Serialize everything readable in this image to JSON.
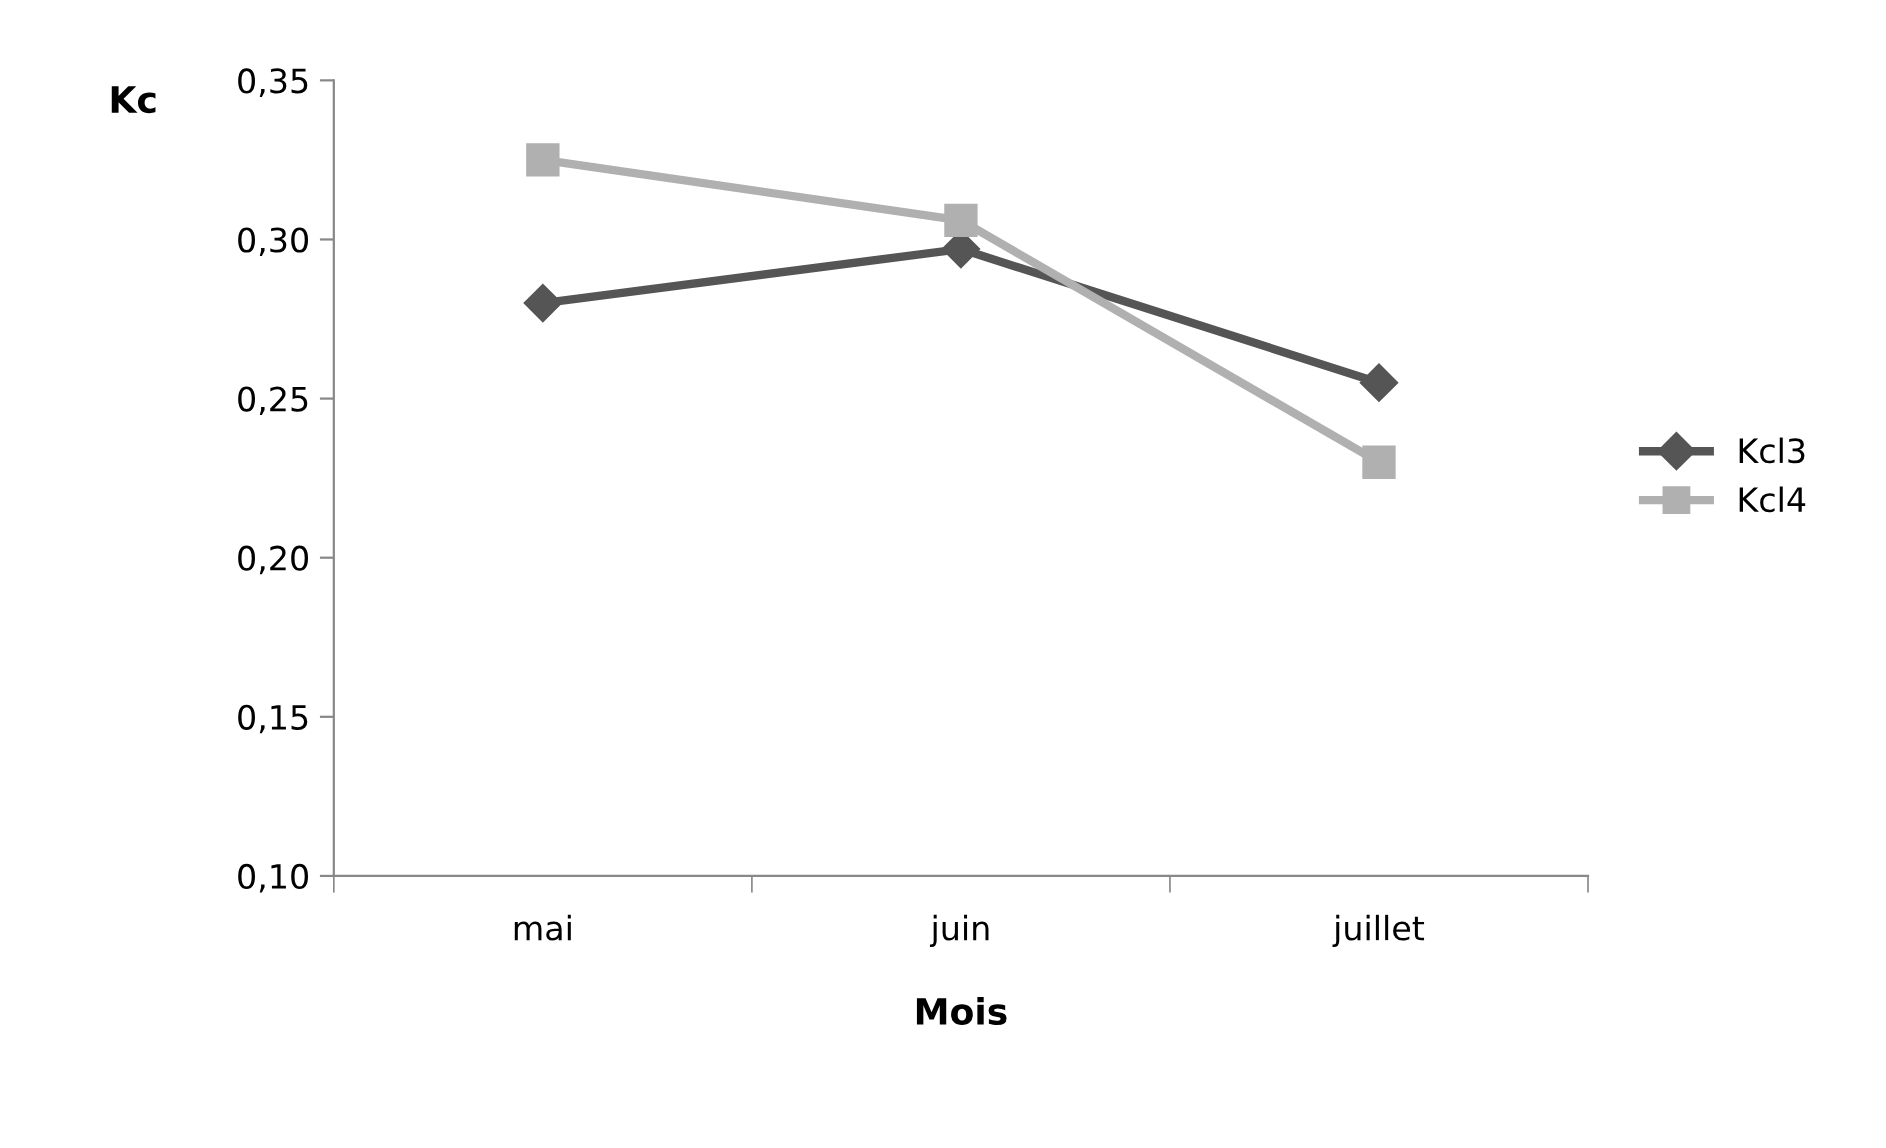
{
  "chart_data": {
    "type": "line",
    "xlabel": "Mois",
    "ylabel": "Kc",
    "categories": [
      "mai",
      "juin",
      "juillet"
    ],
    "series": [
      {
        "name": "Kcl3",
        "color": "#555555",
        "marker": "diamond",
        "values": [
          0.28,
          0.297,
          0.255
        ]
      },
      {
        "name": "Kcl4",
        "color": "#b0b0b0",
        "marker": "square",
        "values": [
          0.325,
          0.306,
          0.23
        ]
      }
    ],
    "ylim": [
      0.1,
      0.35
    ],
    "yticks": [
      {
        "value": 0.1,
        "label": "0,10"
      },
      {
        "value": 0.15,
        "label": "0,15"
      },
      {
        "value": 0.2,
        "label": "0,20"
      },
      {
        "value": 0.25,
        "label": "0,25"
      },
      {
        "value": 0.3,
        "label": "0,30"
      },
      {
        "value": 0.35,
        "label": "0,35"
      }
    ],
    "grid": false,
    "legend": "right",
    "line_style": "solid"
  }
}
